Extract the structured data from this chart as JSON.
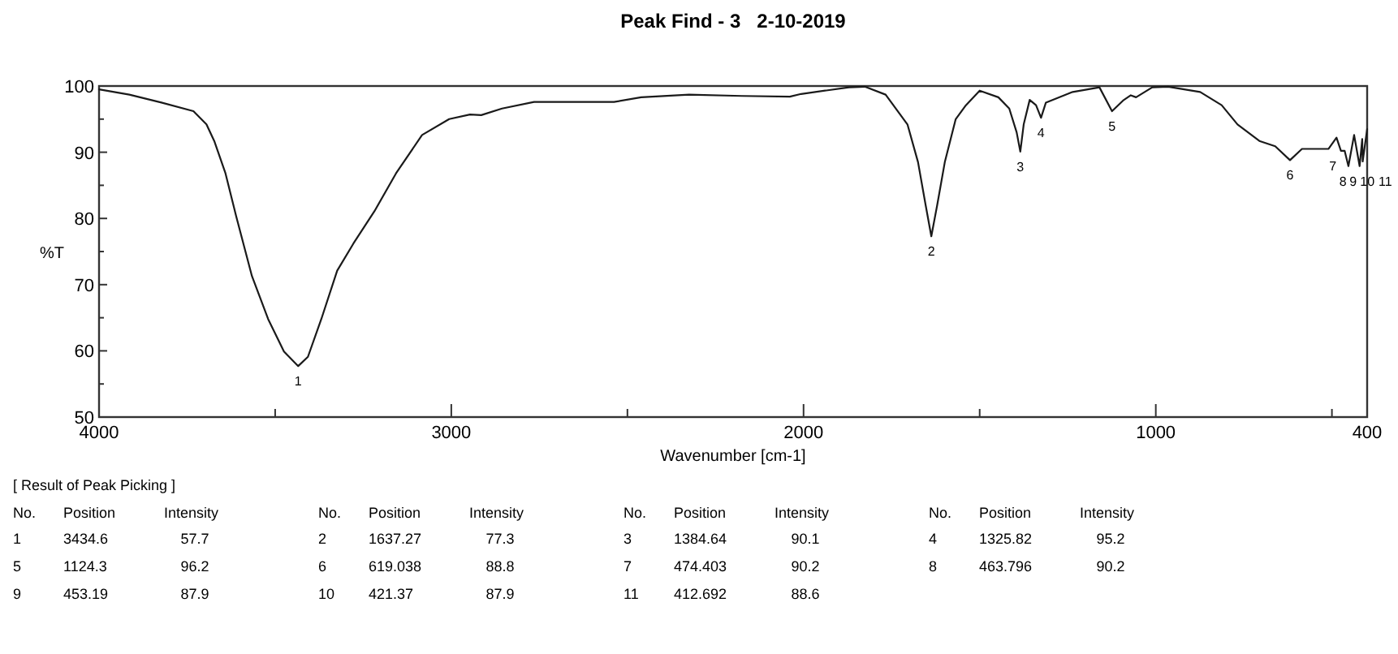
{
  "chart_data": {
    "type": "line",
    "title": "Peak Find - 3   2-10-2019",
    "xlabel": "Wavenumber [cm-1]",
    "ylabel": "%T",
    "xlim": [
      4000,
      400
    ],
    "ylim": [
      50,
      100
    ],
    "xticks": [
      4000,
      {
        "value": 3500,
        "label": null
      },
      3000,
      {
        "value": 2500,
        "label": null
      },
      2000,
      {
        "value": 1500,
        "label": null
      },
      1000,
      {
        "value": 500,
        "label": null
      },
      400
    ],
    "yticks": [
      50,
      {
        "value": 55,
        "label": null
      },
      60,
      {
        "value": 65,
        "label": null
      },
      70,
      {
        "value": 75,
        "label": null
      },
      80,
      {
        "value": 85,
        "label": null
      },
      90,
      {
        "value": 95,
        "label": null
      },
      100
    ],
    "grid": false,
    "marker": "none",
    "line_style": "solid",
    "series": [
      {
        "color": "#1a1a1a",
        "x": [
          4000,
          3914,
          3823,
          3732,
          3695,
          3673,
          3641,
          3611,
          3566,
          3520,
          3475,
          3434.6,
          3407,
          3369,
          3324,
          3278,
          3218,
          3157,
          3083,
          3006,
          2947,
          2915,
          2856,
          2765,
          2538,
          2461,
          2325,
          2175,
          2039,
          2007,
          1871,
          1826,
          1767,
          1705,
          1675,
          1653,
          1637.27,
          1621,
          1599,
          1568,
          1539,
          1500,
          1447,
          1416,
          1395,
          1384.64,
          1375,
          1358,
          1340,
          1325.82,
          1312,
          1236,
          1160,
          1124.3,
          1093,
          1071,
          1056,
          1010,
          965,
          874,
          813,
          768,
          706,
          661,
          619.038,
          585,
          510,
          487,
          474.403,
          463.796,
          453.19,
          437,
          421.37,
          414,
          412.692,
          400
        ],
        "values": [
          99.5,
          98.7,
          97.5,
          96.2,
          94.2,
          91.7,
          86.8,
          80.4,
          71.3,
          64.8,
          59.9,
          57.7,
          59.1,
          64.8,
          72.1,
          76.2,
          81.1,
          86.8,
          92.6,
          95.0,
          95.7,
          95.6,
          96.6,
          97.6,
          97.6,
          98.3,
          98.7,
          98.5,
          98.4,
          98.8,
          99.8,
          99.9,
          98.7,
          94.2,
          88.5,
          81.9,
          77.3,
          81.9,
          88.5,
          95.0,
          97.1,
          99.3,
          98.3,
          96.6,
          93.0,
          90.1,
          94.2,
          97.9,
          97.1,
          95.2,
          97.5,
          99.1,
          99.8,
          96.2,
          97.8,
          98.6,
          98.3,
          99.8,
          99.9,
          99.1,
          97.1,
          94.2,
          91.7,
          90.9,
          88.8,
          90.5,
          90.5,
          92.2,
          90.2,
          90.2,
          87.9,
          92.6,
          87.9,
          92.0,
          88.6,
          93.5
        ]
      }
    ],
    "annotations": [
      "[ Result of Peak Picking ]",
      "No.",
      "Position",
      "Intensity",
      "1",
      "3434.6",
      "57.7",
      "2",
      "1637.27",
      "77.3",
      "3",
      "1384.64",
      "90.1",
      "4",
      "1325.82",
      "95.2",
      "5",
      "1124.3",
      "96.2",
      "6",
      "619.038",
      "88.8",
      "7",
      "474.403",
      "90.2",
      "8",
      "463.796",
      "90.2",
      "9",
      "453.19",
      "87.9",
      "10",
      "421.37",
      "87.9",
      "11",
      "412.692",
      "88.6",
      {
        "text": "1",
        "x": 3434.6,
        "y": 57.7
      },
      {
        "text": "2",
        "x": 1637.27,
        "y": 77.3
      },
      {
        "text": "3",
        "x": 1384.64,
        "y": 90.1
      },
      {
        "text": "4",
        "x": 1325.82,
        "y": 95.2
      },
      {
        "text": "5",
        "x": 1124.3,
        "y": 96.2
      },
      {
        "text": "6",
        "x": 619.038,
        "y": 88.8
      },
      {
        "text": "7",
        "x": 474.403,
        "y": 90.2
      },
      {
        "text": "8",
        "x": 463.796,
        "y": 90.2
      },
      {
        "text": "9",
        "x": 453.19,
        "y": 87.9
      },
      {
        "text": "10",
        "x": 421.37,
        "y": 87.9
      },
      {
        "text": "11",
        "x": 412.692,
        "y": 88.6
      }
    ]
  }
}
